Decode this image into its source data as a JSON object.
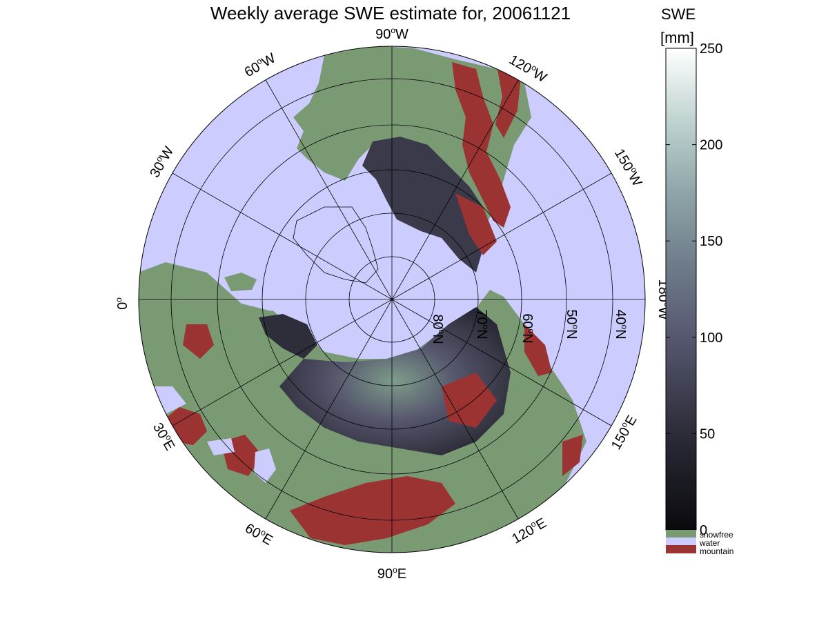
{
  "title": "Weekly average SWE estimate for, 20061121",
  "colorbar": {
    "title_line1": "SWE",
    "title_line2": "[mm]",
    "ticks": [
      "0",
      "50",
      "100",
      "150",
      "200",
      "250"
    ],
    "range": [
      0,
      250
    ],
    "category_labels": [
      "snowfree",
      "water",
      "mountain"
    ],
    "category_colors": [
      "#7a9a74",
      "#ccccff",
      "#9b3333"
    ]
  },
  "map": {
    "projection": "north polar stereographic",
    "longitude_labels": [
      {
        "sup": "o",
        "base": "90",
        "suffix": "W"
      },
      {
        "sup": "o",
        "base": "120",
        "suffix": "W"
      },
      {
        "sup": "o",
        "base": "150",
        "suffix": "W"
      },
      {
        "sup": "o",
        "base": "180",
        "suffix": "W"
      },
      {
        "sup": "o",
        "base": "150",
        "suffix": "E"
      },
      {
        "sup": "o",
        "base": "120",
        "suffix": "E"
      },
      {
        "sup": "o",
        "base": "90",
        "suffix": "E"
      },
      {
        "sup": "o",
        "base": "60",
        "suffix": "E"
      },
      {
        "sup": "o",
        "base": "30",
        "suffix": "E"
      },
      {
        "sup": "o",
        "base": "0",
        "suffix": ""
      },
      {
        "sup": "o",
        "base": "30",
        "suffix": "W"
      },
      {
        "sup": "o",
        "base": "60",
        "suffix": "W"
      }
    ],
    "latitude_labels": [
      {
        "sup": "o",
        "base": "40",
        "suffix": "N"
      },
      {
        "sup": "o",
        "base": "50",
        "suffix": "N"
      },
      {
        "sup": "o",
        "base": "60",
        "suffix": "N"
      },
      {
        "sup": "o",
        "base": "70",
        "suffix": "N"
      },
      {
        "sup": "o",
        "base": "80",
        "suffix": "N"
      }
    ],
    "colors": {
      "water": "#ccccff",
      "snowfree": "#7a9a74",
      "mountain": "#9b3333",
      "swe_low": "#1c1c24",
      "swe_mid": "#4a4a60",
      "swe_high": "#7e9c8c"
    }
  }
}
